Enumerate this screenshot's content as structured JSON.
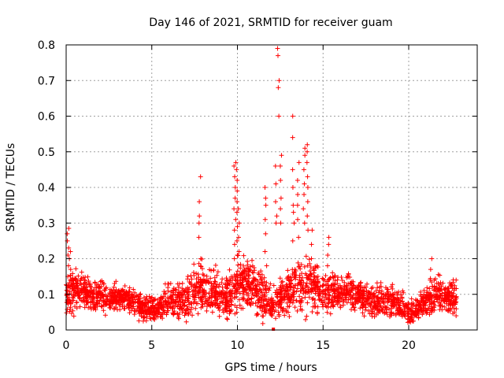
{
  "chart_data": {
    "type": "scatter",
    "title": "Day 146 of 2021, SRMTID for receiver guam",
    "xlabel": "GPS time / hours",
    "ylabel": "SRMTID / TECUs",
    "xlim": [
      0,
      24
    ],
    "ylim": [
      0,
      0.8
    ],
    "x_ticks": [
      0,
      5,
      10,
      15,
      20
    ],
    "y_ticks": [
      0,
      0.1,
      0.2,
      0.3,
      0.4,
      0.5,
      0.6,
      0.7,
      0.8
    ],
    "x_tick_labels": [
      "0",
      "5",
      "10",
      "15",
      "20"
    ],
    "y_tick_labels": [
      "0",
      "0.1",
      "0.2",
      "0.3",
      "0.4",
      "0.5",
      "0.6",
      "0.7",
      "0.8"
    ],
    "grid": true,
    "marker": "+",
    "color": "#ff0000",
    "series": [
      {
        "name": "SRMTID",
        "envelope": {
          "x": [
            0,
            0.3,
            0.7,
            1.0,
            1.5,
            2,
            2.5,
            3,
            3.5,
            4,
            4.5,
            5,
            5.5,
            6,
            6.5,
            7,
            7.5,
            8,
            8.5,
            9,
            9.5,
            10,
            10.5,
            11,
            11.5,
            12,
            12.5,
            13,
            13.5,
            14,
            14.5,
            15,
            15.5,
            16,
            16.5,
            17,
            17.5,
            18,
            18.5,
            19,
            19.5,
            20,
            20.5,
            21,
            21.5,
            22,
            22.5,
            22.8
          ],
          "center": [
            0.08,
            0.11,
            0.12,
            0.11,
            0.1,
            0.1,
            0.09,
            0.09,
            0.09,
            0.08,
            0.06,
            0.06,
            0.07,
            0.08,
            0.08,
            0.09,
            0.11,
            0.12,
            0.11,
            0.1,
            0.09,
            0.13,
            0.13,
            0.12,
            0.09,
            0.07,
            0.08,
            0.11,
            0.12,
            0.13,
            0.12,
            0.11,
            0.11,
            0.1,
            0.11,
            0.1,
            0.09,
            0.08,
            0.08,
            0.08,
            0.07,
            0.05,
            0.06,
            0.08,
            0.1,
            0.1,
            0.09,
            0.09
          ],
          "spread": [
            0.04,
            0.05,
            0.05,
            0.04,
            0.04,
            0.04,
            0.04,
            0.03,
            0.03,
            0.03,
            0.03,
            0.03,
            0.03,
            0.04,
            0.04,
            0.05,
            0.05,
            0.06,
            0.05,
            0.05,
            0.05,
            0.06,
            0.06,
            0.06,
            0.05,
            0.04,
            0.05,
            0.06,
            0.06,
            0.06,
            0.06,
            0.05,
            0.05,
            0.04,
            0.04,
            0.04,
            0.04,
            0.04,
            0.04,
            0.04,
            0.03,
            0.03,
            0.03,
            0.04,
            0.05,
            0.04,
            0.04,
            0.04
          ]
        },
        "count": 2600,
        "spikes": [
          {
            "x": 0.12,
            "y": [
              0.15,
              0.18,
              0.21,
              0.23,
              0.25,
              0.27,
              0.285
            ]
          },
          {
            "x": 0.22,
            "y": [
              0.14,
              0.17,
              0.2,
              0.22
            ]
          },
          {
            "x": 7.8,
            "y": [
              0.2,
              0.26,
              0.3,
              0.32,
              0.36,
              0.43
            ]
          },
          {
            "x": 9.85,
            "y": [
              0.2,
              0.24,
              0.28,
              0.31,
              0.34,
              0.37,
              0.4,
              0.43,
              0.46,
              0.47
            ]
          },
          {
            "x": 9.95,
            "y": [
              0.21,
              0.25,
              0.29,
              0.33,
              0.36,
              0.39,
              0.42,
              0.45
            ]
          },
          {
            "x": 10.1,
            "y": [
              0.22,
              0.26,
              0.3,
              0.34
            ]
          },
          {
            "x": 11.65,
            "y": [
              0.18,
              0.22,
              0.27,
              0.31,
              0.35,
              0.37,
              0.4
            ]
          },
          {
            "x": 12.25,
            "y": [
              0.3,
              0.32,
              0.36,
              0.41,
              0.46
            ]
          },
          {
            "x": 12.4,
            "y": [
              0.6,
              0.68,
              0.7,
              0.77,
              0.79
            ]
          },
          {
            "x": 12.55,
            "y": [
              0.3,
              0.34,
              0.37,
              0.42,
              0.46,
              0.49
            ]
          },
          {
            "x": 13.25,
            "y": [
              0.25,
              0.3,
              0.33,
              0.35,
              0.4,
              0.45,
              0.54,
              0.6
            ]
          },
          {
            "x": 13.55,
            "y": [
              0.26,
              0.31,
              0.35,
              0.38,
              0.42,
              0.47
            ]
          },
          {
            "x": 13.9,
            "y": [
              0.3,
              0.34,
              0.38,
              0.41,
              0.45,
              0.49,
              0.51
            ]
          },
          {
            "x": 14.1,
            "y": [
              0.28,
              0.32,
              0.36,
              0.4,
              0.43,
              0.47,
              0.5,
              0.52
            ]
          },
          {
            "x": 14.35,
            "y": [
              0.2,
              0.24,
              0.28
            ]
          },
          {
            "x": 15.3,
            "y": [
              0.18,
              0.21,
              0.24,
              0.26
            ]
          },
          {
            "x": 21.3,
            "y": [
              0.14,
              0.17,
              0.2
            ]
          }
        ],
        "extra_points": [
          {
            "x": 12.1,
            "y": 0.0
          }
        ]
      }
    ]
  }
}
